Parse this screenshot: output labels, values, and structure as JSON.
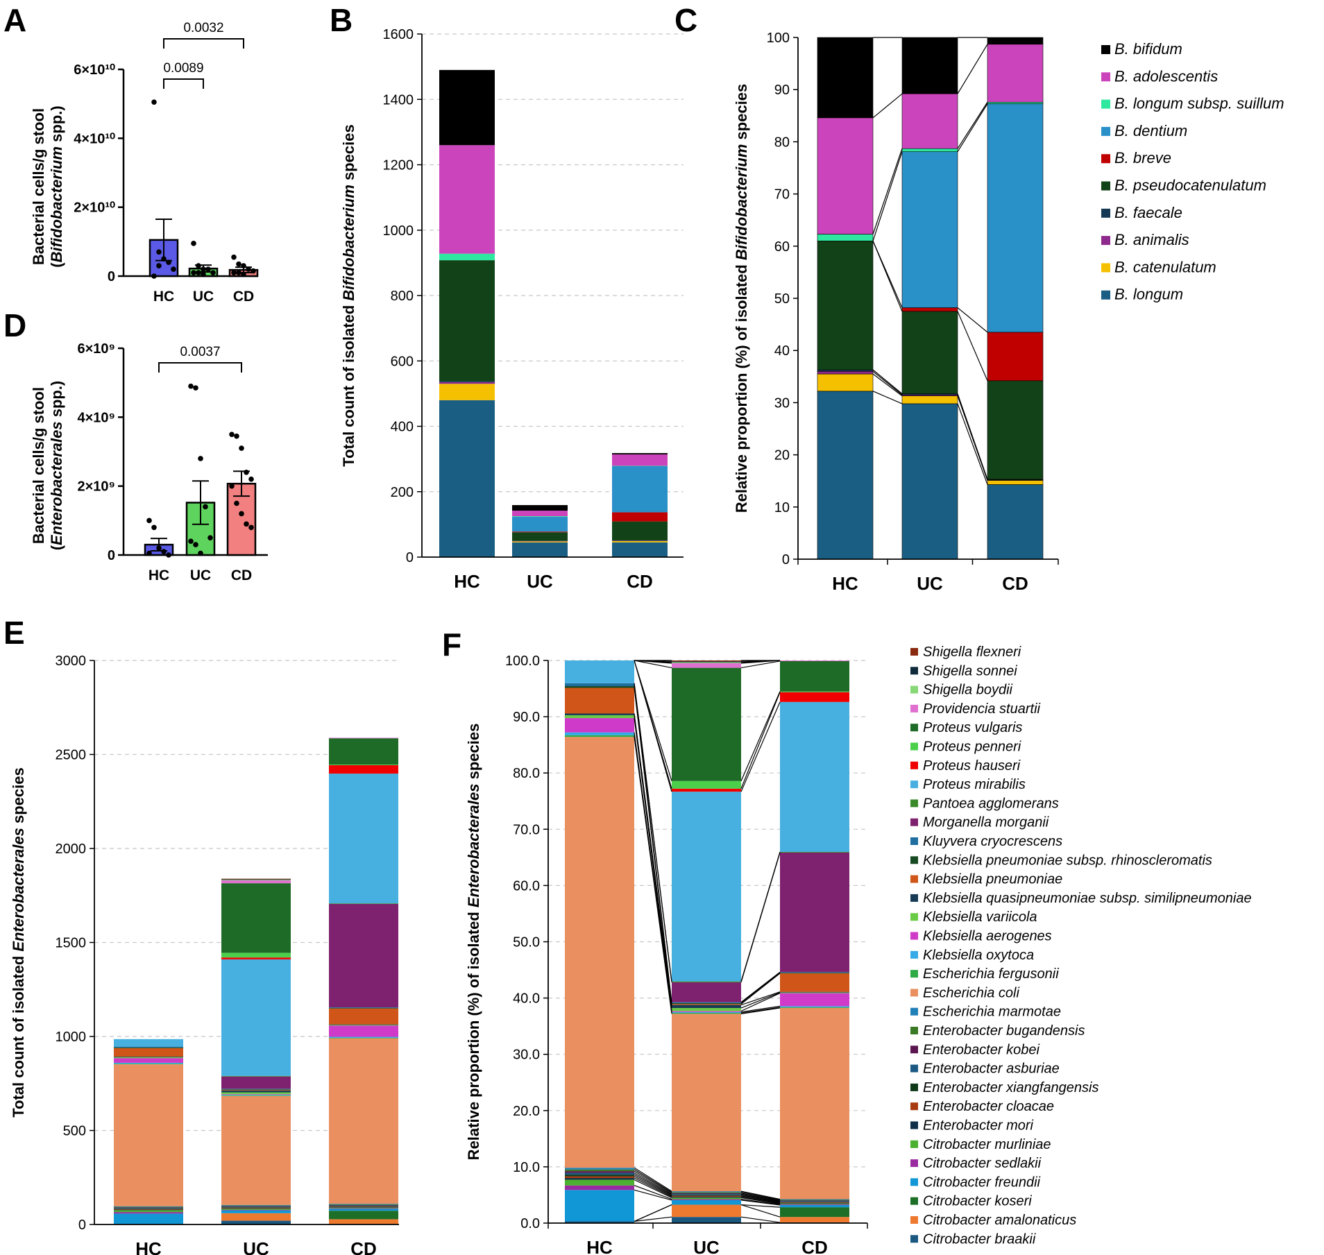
{
  "panel_letters": [
    "A",
    "B",
    "C",
    "D",
    "E",
    "F"
  ],
  "chart_data": [
    {
      "id": "A",
      "type": "bar",
      "categories": [
        "HC",
        "UC",
        "CD"
      ],
      "values": [
        10500000000.0,
        2200000000.0,
        1800000000.0
      ],
      "errors": [
        6000000000.0,
        1000000000.0,
        800000000.0
      ],
      "colors": [
        "#5a5ae6",
        "#5ed45e",
        "#f28080"
      ],
      "points": [
        [
          50500000000.0,
          7000000000.0,
          5000000000.0,
          4000000000.0,
          2000000000.0,
          0.0,
          3000000000.0
        ],
        [
          9500000000.0,
          3000000000.0,
          2000000000.0,
          2000000000.0,
          1000000000.0,
          1000000000.0,
          1000000000.0,
          500000000.0
        ],
        [
          5500000000.0,
          3500000000.0,
          3000000000.0,
          2000000000.0,
          1500000000.0,
          1000000000.0,
          1000000000.0,
          500000000.0
        ]
      ],
      "yticks": [
        "0",
        "2×10¹⁰",
        "4×10¹⁰",
        "6×10¹⁰"
      ],
      "ylim": [
        0,
        60000000000.0
      ],
      "ylabel_line1": "Bacterial cells/g stool",
      "ylabel_line2": "(Bifidobacterium spp.)",
      "brackets": [
        {
          "from": "HC",
          "to": "CD",
          "label": "0.0032"
        },
        {
          "from": "HC",
          "to": "UC",
          "label": "0.0089"
        }
      ]
    },
    {
      "id": "D",
      "type": "bar",
      "categories": [
        "HC",
        "UC",
        "CD"
      ],
      "values": [
        300000000.0,
        1520000000.0,
        2070000000.0
      ],
      "errors": [
        180000000.0,
        630000000.0,
        360000000.0
      ],
      "colors": [
        "#5a5ae6",
        "#5ed45e",
        "#f28080"
      ],
      "points": [
        [
          1000000000.0,
          800000000.0,
          200000000.0,
          100000000.0,
          0.0,
          50000000.0
        ],
        [
          4900000000.0,
          4850000000.0,
          2800000000.0,
          1400000000.0,
          500000000.0,
          400000000.0,
          300000000.0,
          50000000.0
        ],
        [
          3500000000.0,
          3450000000.0,
          3100000000.0,
          2400000000.0,
          2200000000.0,
          2000000000.0,
          1500000000.0,
          1200000000.0,
          900000000.0,
          800000000.0
        ]
      ],
      "yticks": [
        "0",
        "2×10⁹",
        "4×10⁹",
        "6×10⁹"
      ],
      "ylim": [
        0,
        6000000000.0
      ],
      "ylabel_line1": "Bacterial cells/g stool",
      "ylabel_line2": "(Enterobacterales spp.)",
      "brackets": [
        {
          "from": "HC",
          "to": "CD",
          "label": "0.0037"
        }
      ]
    },
    {
      "id": "B",
      "type": "stacked-bar",
      "categories": [
        "HC",
        "UC",
        "CD"
      ],
      "ylim": [
        0,
        1600
      ],
      "yticks": [
        "0",
        "200",
        "400",
        "600",
        "800",
        "1000",
        "1200",
        "1400",
        "1600"
      ],
      "ylabel": "Total count of isolated Bifidobacterium species",
      "series": [
        {
          "name": "B. longum",
          "values": [
            480,
            45,
            45
          ]
        },
        {
          "name": "B. catenulatum",
          "values": [
            50,
            3,
            4
          ]
        },
        {
          "name": "B. animalis",
          "values": [
            5,
            1,
            1
          ]
        },
        {
          "name": "B. faecale",
          "values": [
            3,
            1,
            1
          ]
        },
        {
          "name": "B. pseudocatenulatum",
          "values": [
            370,
            26,
            58
          ]
        },
        {
          "name": "B. breve",
          "values": [
            0,
            2,
            28
          ]
        },
        {
          "name": "B. dentium",
          "values": [
            0,
            45,
            141
          ]
        },
        {
          "name": "B. longum subsp. suillum",
          "values": [
            20,
            2,
            1
          ]
        },
        {
          "name": "B. adolescentis",
          "values": [
            332,
            17,
            35
          ]
        },
        {
          "name": "B. bifidum",
          "values": [
            230,
            17,
            4
          ]
        }
      ]
    },
    {
      "id": "C",
      "type": "stacked-bar",
      "categories": [
        "HC",
        "UC",
        "CD"
      ],
      "ylim": [
        0,
        100
      ],
      "yticks": [
        "0",
        "10",
        "20",
        "30",
        "40",
        "50",
        "60",
        "70",
        "80",
        "90",
        "100"
      ],
      "ylabel": "Relative proportion (%) of isolated Bifidobacterium species",
      "series": [
        {
          "name": "B. longum",
          "values": [
            32.2,
            29.8,
            14.3
          ]
        },
        {
          "name": "B. catenulatum",
          "values": [
            3.3,
            1.5,
            0.8
          ]
        },
        {
          "name": "B. animalis",
          "values": [
            0.5,
            0.2,
            0.1
          ]
        },
        {
          "name": "B. faecale",
          "values": [
            0.3,
            0.2,
            0.1
          ]
        },
        {
          "name": "B. pseudocatenulatum",
          "values": [
            24.7,
            15.8,
            18.9
          ]
        },
        {
          "name": "B. breve",
          "values": [
            0,
            0.7,
            9.3
          ]
        },
        {
          "name": "B. dentium",
          "values": [
            0,
            29.9,
            43.8
          ]
        },
        {
          "name": "B. longum subsp. suillum",
          "values": [
            1.3,
            0.6,
            0.3
          ]
        },
        {
          "name": "B. adolescentis",
          "values": [
            22.3,
            10.5,
            11.1
          ]
        },
        {
          "name": "B. bifidum",
          "values": [
            15.4,
            10.8,
            1.3
          ]
        }
      ],
      "legend": [
        "B. bifidum",
        "B. adolescentis",
        "B. longum subsp. suillum",
        "B. dentium",
        "B. breve",
        "B. pseudocatenulatum",
        "B. faecale",
        "B. animalis",
        "B. catenulatum",
        "B. longum"
      ]
    },
    {
      "id": "E",
      "type": "stacked-bar",
      "categories": [
        "HC",
        "UC",
        "CD"
      ],
      "ylim": [
        0,
        3000
      ],
      "yticks": [
        "0",
        "500",
        "1000",
        "1500",
        "2000",
        "2500",
        "3000"
      ],
      "ylabel": "Total count of isolated Enterobacterales species",
      "series": [
        {
          "name": "Citrobacter braakii",
          "values": [
            3,
            20,
            3
          ]
        },
        {
          "name": "Citrobacter amalonaticus",
          "values": [
            0,
            40,
            25
          ]
        },
        {
          "name": "Citrobacter koseri",
          "values": [
            0,
            0,
            45
          ]
        },
        {
          "name": "Citrobacter freundii",
          "values": [
            55,
            15,
            10
          ]
        },
        {
          "name": "Citrobacter sedlakii",
          "values": [
            8,
            3,
            3
          ]
        },
        {
          "name": "Citrobacter murliniae",
          "values": [
            10,
            5,
            3
          ]
        },
        {
          "name": "Enterobacter mori",
          "values": [
            3,
            3,
            3
          ]
        },
        {
          "name": "Enterobacter cloacae",
          "values": [
            3,
            3,
            3
          ]
        },
        {
          "name": "Enterobacter xiangfangensis",
          "values": [
            3,
            3,
            3
          ]
        },
        {
          "name": "Enterobacter asburiae",
          "values": [
            3,
            3,
            3
          ]
        },
        {
          "name": "Enterobacter kobei",
          "values": [
            3,
            3,
            3
          ]
        },
        {
          "name": "Enterobacter bugandensis",
          "values": [
            3,
            3,
            3
          ]
        },
        {
          "name": "Escherichia marmotae",
          "values": [
            3,
            3,
            3
          ]
        },
        {
          "name": "Escherichia coli",
          "values": [
            755,
            580,
            880
          ]
        },
        {
          "name": "Escherichia fergusonii",
          "values": [
            3,
            3,
            3
          ]
        },
        {
          "name": "Klebsiella oxytoca",
          "values": [
            5,
            3,
            5
          ]
        },
        {
          "name": "Klebsiella aerogenes",
          "values": [
            25,
            3,
            60
          ]
        },
        {
          "name": "Klebsiella variicola",
          "values": [
            5,
            10,
            3
          ]
        },
        {
          "name": "Klebsiella quasipneumoniae subsp. similipneumoniae",
          "values": [
            3,
            10,
            3
          ]
        },
        {
          "name": "Klebsiella pneumoniae",
          "values": [
            45,
            3,
            85
          ]
        },
        {
          "name": "Klebsiella pneumoniae subsp. rhinoscleromatis",
          "values": [
            3,
            3,
            3
          ]
        },
        {
          "name": "Kluyvera cryocrescens",
          "values": [
            5,
            3,
            3
          ]
        },
        {
          "name": "Morganella morganii",
          "values": [
            0,
            65,
            550
          ]
        },
        {
          "name": "Pantoea agglomerans",
          "values": [
            0,
            3,
            3
          ]
        },
        {
          "name": "Proteus mirabilis",
          "values": [
            40,
            620,
            690
          ]
        },
        {
          "name": "Proteus hauseri",
          "values": [
            0,
            10,
            45
          ]
        },
        {
          "name": "Proteus penneri",
          "values": [
            0,
            25,
            3
          ]
        },
        {
          "name": "Proteus vulgaris",
          "values": [
            0,
            370,
            140
          ]
        },
        {
          "name": "Providencia stuartii",
          "values": [
            0,
            15,
            3
          ]
        },
        {
          "name": "Shigella boydii",
          "values": [
            0,
            3,
            0
          ]
        },
        {
          "name": "Shigella sonnei",
          "values": [
            0,
            3,
            0
          ]
        },
        {
          "name": "Shigella flexneri",
          "values": [
            0,
            3,
            0
          ]
        }
      ]
    },
    {
      "id": "F",
      "type": "stacked-bar",
      "categories": [
        "HC",
        "UC",
        "CD"
      ],
      "ylim": [
        0,
        100
      ],
      "yticks": [
        "0.0",
        "10.0",
        "20.0",
        "30.0",
        "40.0",
        "50.0",
        "60.0",
        "70.0",
        "80.0",
        "90.0",
        "100.0"
      ],
      "ylabel": "Relative proportion (%) of isolated Enterobacterales species",
      "legend": [
        "Shigella flexneri",
        "Shigella sonnei",
        "Shigella boydii",
        "Providencia stuartii",
        "Proteus vulgaris",
        "Proteus penneri",
        "Proteus hauseri",
        "Proteus mirabilis",
        "Pantoea agglomerans",
        "Morganella morganii",
        "Kluyvera cryocrescens",
        "Klebsiella pneumoniae subsp. rhinoscleromatis",
        "Klebsiella pneumoniae",
        "Klebsiella quasipneumoniae subsp. similipneumoniae",
        "Klebsiella variicola",
        "Klebsiella aerogenes",
        "Klebsiella oxytoca",
        "Escherichia fergusonii",
        "Escherichia coli",
        "Escherichia marmotae",
        "Enterobacter bugandensis",
        "Enterobacter kobei",
        "Enterobacter asburiae",
        "Enterobacter xiangfangensis",
        "Enterobacter cloacae",
        "Enterobacter mori",
        "Citrobacter murliniae",
        "Citrobacter sedlakii",
        "Citrobacter freundii",
        "Citrobacter koseri",
        "Citrobacter amalonaticus",
        "Citrobacter braakii"
      ]
    }
  ],
  "bifido_colors": {
    "B. bifidum": "#000000",
    "B. adolescentis": "#cc44bb",
    "B. longum subsp. suillum": "#2ee8a0",
    "B. dentium": "#2a90c8",
    "B. breve": "#c00000",
    "B. pseudocatenulatum": "#124318",
    "B. faecale": "#163a55",
    "B. animalis": "#8e2a8e",
    "B. catenulatum": "#f5c000",
    "B. longum": "#1a5e84"
  },
  "entero_colors": {
    "Shigella flexneri": "#8a2a10",
    "Shigella sonnei": "#0f2a3a",
    "Shigella boydii": "#88d878",
    "Providencia stuartii": "#e070d0",
    "Proteus vulgaris": "#1d6b26",
    "Proteus penneri": "#4cd04c",
    "Proteus hauseri": "#f00000",
    "Proteus mirabilis": "#47b0e0",
    "Pantoea agglomerans": "#3a8a2a",
    "Morganella morganii": "#7e2270",
    "Kluyvera cryocrescens": "#1e6ea0",
    "Klebsiella pneumoniae subsp. rhinoscleromatis": "#174a22",
    "Klebsiella pneumoniae": "#cf5618",
    "Klebsiella quasipneumoniae subsp. similipneumoniae": "#173a55",
    "Klebsiella variicola": "#6acc46",
    "Klebsiella aerogenes": "#d03ac8",
    "Klebsiella oxytoca": "#35aae6",
    "Escherichia fergusonii": "#2eaa46",
    "Escherichia coli": "#ea9060",
    "Escherichia marmotae": "#2280b8",
    "Enterobacter bugandensis": "#3a7a26",
    "Enterobacter kobei": "#5a1650",
    "Enterobacter asburiae": "#1c5a85",
    "Enterobacter xiangfangensis": "#0f3a1a",
    "Enterobacter cloacae": "#a83a10",
    "Enterobacter mori": "#10304a",
    "Citrobacter murliniae": "#4cb030",
    "Citrobacter sedlakii": "#9a2aa0",
    "Citrobacter freundii": "#1196d6",
    "Citrobacter koseri": "#1d6e26",
    "Citrobacter amalonaticus": "#ee7a30",
    "Citrobacter braakii": "#1a5880"
  }
}
